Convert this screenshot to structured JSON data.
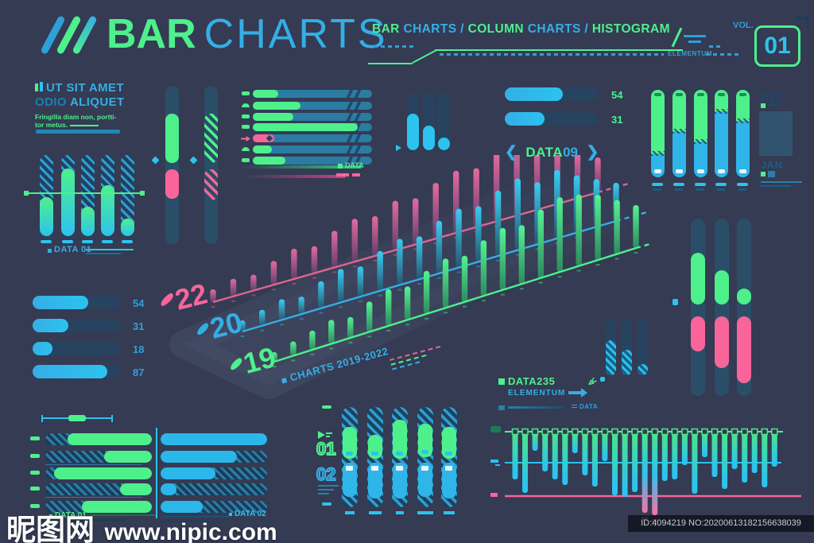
{
  "colors": {
    "bg": "#343b53",
    "green": "#4ef08c",
    "green_dark": "#1e7a52",
    "cyan": "#2cc3ef",
    "blue": "#35aee5",
    "blue_mid": "#2f9fd8",
    "blue_deep": "#2a7fa8",
    "navy_text": "#1c4a6e",
    "jan_text": "#1d5c86",
    "pink": "#f9659a",
    "pink_line": "#e0648f",
    "track": "#2a4e68",
    "track_dark": "#27435f",
    "panel": "#32536d",
    "white_mark": "#e8f6ff"
  },
  "header": {
    "title": [
      {
        "t": "BAR"
      },
      {
        "t": "CHARTS"
      }
    ],
    "subtitle": [
      {
        "t": "BAR "
      },
      {
        "t": "CHARTS / "
      },
      {
        "t": "COLUMN "
      },
      {
        "t": "CHARTS / "
      },
      {
        "t": "HISTOGRAM"
      }
    ],
    "elementum": "ELEMENTUM",
    "vol_label": "VOL.",
    "vol_number": "01"
  },
  "intro": {
    "heading1": "UT SIT AMET",
    "heading2_a": "ODIO",
    "heading2_b": " ALIQUET",
    "body1": "Fringilla diam non, portti-",
    "body2": "tor metus."
  },
  "labels": {
    "data01": "DATA 01",
    "data01_b": "DATA 01",
    "data02": "DATA 02",
    "data_mid": "DATA",
    "data09_a": "DATA",
    "data09_b": "09",
    "dec": "DEC.",
    "jan": "JAN",
    "y22": "22",
    "y20": "20",
    "y19": "19",
    "charts_years": "CHARTS 2019-2022",
    "n01": "01",
    "n02": "02",
    "data235": "DATA235",
    "elementum2": "ELEMENTUM",
    "redata": "DATA"
  },
  "watermark": {
    "site": "昵图网",
    "url": "www.nipic.com",
    "idline": "ID:4094219 NO:20200613182156638039"
  },
  "chart_data": [
    {
      "id": "capsule-bars-data01",
      "type": "bar",
      "label": "DATA 01",
      "track_height": 102,
      "fill_heights": [
        49,
        85,
        37,
        64,
        22
      ]
    },
    {
      "id": "dual-capsules",
      "type": "bar",
      "series": [
        {
          "name": "solid",
          "green_height": 62,
          "pink_height": 37
        },
        {
          "name": "hatched",
          "green_height": 62,
          "pink_height": 39
        }
      ]
    },
    {
      "id": "h-bars",
      "type": "bar",
      "orientation": "horizontal",
      "label": "DATA",
      "values_pct": [
        21,
        40,
        34,
        88,
        18,
        16,
        27
      ],
      "bar_colors": [
        "green",
        "green",
        "green",
        "green",
        "pink",
        "green",
        "green"
      ]
    },
    {
      "id": "cyan-triple",
      "type": "bar",
      "track_height": 72,
      "fill_heights": [
        46,
        31,
        16
      ]
    },
    {
      "id": "progress-right",
      "type": "bar",
      "orientation": "horizontal",
      "values": [
        54,
        31
      ],
      "fills_pct": [
        62,
        42
      ]
    },
    {
      "id": "progress-left",
      "type": "bar",
      "orientation": "horizontal",
      "values": [
        54,
        31,
        18,
        87
      ],
      "fills_pct": [
        64,
        41,
        23,
        85
      ]
    },
    {
      "id": "dec-jan",
      "type": "bar",
      "stacked": true,
      "legend": [
        "DEC.",
        "JAN"
      ],
      "track_height": 110,
      "green_heights": [
        80,
        52,
        65,
        27,
        39
      ],
      "cyan_heights": [
        30,
        58,
        45,
        83,
        71
      ]
    },
    {
      "id": "iso-3d",
      "type": "bar",
      "caption": "CHARTS 2019-2022",
      "rows": [
        {
          "year": "22",
          "color": "pink",
          "heights": [
            16,
            22,
            20,
            30,
            38,
            34,
            46,
            54,
            50,
            62,
            58,
            70,
            78,
            74,
            86,
            92,
            80,
            68,
            56,
            44
          ]
        },
        {
          "year": "20",
          "color": "blue",
          "heights": [
            14,
            20,
            26,
            22,
            34,
            42,
            38,
            50,
            58,
            54,
            66,
            74,
            70,
            82,
            90,
            78,
            86,
            72,
            60,
            48
          ]
        },
        {
          "year": "19",
          "color": "green",
          "heights": [
            12,
            18,
            24,
            30,
            26,
            38,
            46,
            42,
            54,
            62,
            58,
            70,
            78,
            74,
            86,
            94,
            90,
            82,
            68,
            54
          ]
        }
      ]
    },
    {
      "id": "green-pink-triple",
      "type": "bar",
      "track_height": 223,
      "green_heights": [
        65,
        43,
        20
      ],
      "pink_heights": [
        44,
        65,
        84
      ]
    },
    {
      "id": "hatched-cyan-triple",
      "type": "bar",
      "track_height": 70,
      "fill_heights": [
        44,
        32,
        14
      ]
    },
    {
      "id": "tornado",
      "type": "bar",
      "left_label": "DATA 01",
      "right_label": "DATA 02",
      "track_width": 134,
      "left_green_segments": [
        [
          28,
          106
        ],
        [
          74,
          60
        ],
        [
          11,
          123
        ],
        [
          94,
          40
        ],
        [
          46,
          88
        ]
      ],
      "right_cyan_widths": [
        134,
        96,
        69,
        20,
        53
      ]
    },
    {
      "id": "dual-row-5col",
      "type": "bar",
      "row_labels": [
        "01",
        "02"
      ],
      "green_segments": [
        [
          25,
          40
        ],
        [
          35,
          30
        ],
        [
          16,
          49
        ],
        [
          21,
          42
        ],
        [
          25,
          40
        ]
      ],
      "blue_segments": [
        [
          70,
          43
        ],
        [
          70,
          45
        ],
        [
          70,
          45
        ],
        [
          70,
          43
        ],
        [
          70,
          45
        ]
      ]
    },
    {
      "id": "hanging-histogram",
      "type": "bar",
      "baseline": "top",
      "lengths": [
        58,
        75,
        22,
        48,
        58,
        65,
        25,
        53,
        67,
        35,
        78,
        80,
        74,
        100,
        103,
        60,
        58,
        40,
        76,
        30,
        55,
        70,
        45,
        62,
        50,
        68,
        42
      ],
      "pink_indices": [
        13,
        14
      ]
    }
  ]
}
